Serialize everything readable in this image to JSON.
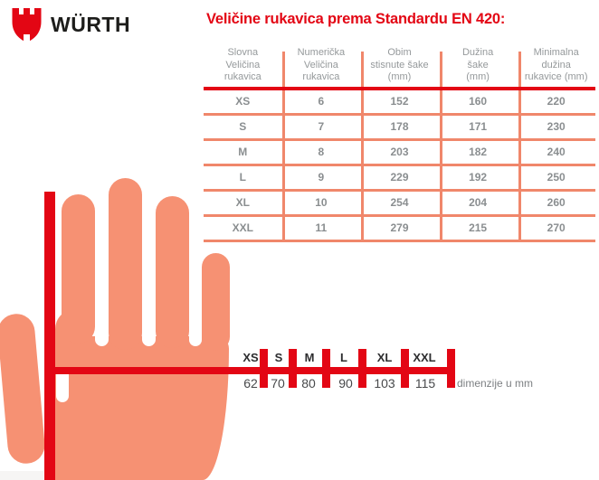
{
  "brand": {
    "wordmark": "WÜRTH",
    "logo_icon": "wuerth-shield-icon",
    "brand_red": "#e30614"
  },
  "title": "Veličine rukavica prema Standardu EN 420:",
  "table": {
    "headers": [
      [
        "Slovna",
        "Veličina",
        "rukavica"
      ],
      [
        "Numerička",
        "Veličina",
        "rukavica"
      ],
      [
        "Obim",
        "stisnute šake",
        "(mm)"
      ],
      [
        "Dužina",
        "šake",
        "(mm)"
      ],
      [
        "Minimalna",
        "dužina",
        "rukavice (mm)"
      ]
    ],
    "rows": [
      [
        "XS",
        "6",
        "152",
        "160",
        "220"
      ],
      [
        "S",
        "7",
        "178",
        "171",
        "230"
      ],
      [
        "M",
        "8",
        "203",
        "182",
        "240"
      ],
      [
        "L",
        "9",
        "229",
        "192",
        "250"
      ],
      [
        "XL",
        "10",
        "254",
        "204",
        "260"
      ],
      [
        "XXL",
        "11",
        "279",
        "215",
        "270"
      ]
    ]
  },
  "scale": {
    "sizes": [
      "XS",
      "S",
      "M",
      "L",
      "XL",
      "XXL"
    ],
    "values": [
      "62",
      "70",
      "80",
      "90",
      "103",
      "115"
    ],
    "unit_label": "dimenzije u mm"
  },
  "colors": {
    "accent_red": "#e30614",
    "hand_salmon": "#f69173",
    "grid_salmon": "#f0876b",
    "header_gray": "#95999b",
    "cell_gray": "#8a8e90",
    "label_dark": "#2d2d2f"
  }
}
